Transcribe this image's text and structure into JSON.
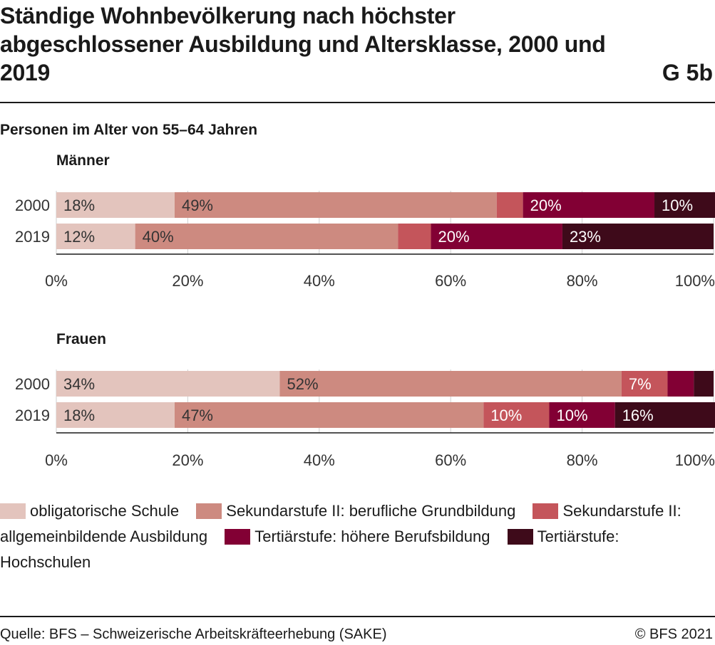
{
  "header": {
    "title": "Ständige Wohnbevölkerung nach höchster abgeschlossener Ausbildung und Altersklasse, 2000 und 2019",
    "code": "G 5b",
    "subtitle": "Personen im Alter von 55–64 Jahren"
  },
  "footer": {
    "source": "Quelle: BFS – Schweizerische Arbeitskräfteerhebung (SAKE)",
    "copyright": "© BFS 2021"
  },
  "chart_data": [
    {
      "type": "bar",
      "orientation": "horizontal",
      "stacked": true,
      "title": "Männer",
      "categories": [
        "2000",
        "2019"
      ],
      "xlim": [
        0,
        100
      ],
      "xticks": [
        "0%",
        "20%",
        "40%",
        "60%",
        "80%",
        "100%"
      ],
      "grid": true,
      "series": [
        {
          "name": "obligatorische Schule",
          "color": "#e3c4bd",
          "values": [
            18,
            12
          ],
          "labels": [
            "18%",
            "12%"
          ]
        },
        {
          "name": "Sekundarstufe II: berufliche Grundbildung",
          "color": "#cd8a80",
          "values": [
            49,
            40
          ],
          "labels": [
            "49%",
            "40%"
          ]
        },
        {
          "name": "Sekundarstufe II: allgemeinbildende Ausbildung",
          "color": "#c4555b",
          "values": [
            4,
            5
          ],
          "labels": [
            "",
            ""
          ]
        },
        {
          "name": "Tertiärstufe: höhere Berufsbildung",
          "color": "#820034",
          "values": [
            20,
            20
          ],
          "labels": [
            "20%",
            "20%"
          ]
        },
        {
          "name": "Tertiärstufe: Hochschulen",
          "color": "#3e0a1a",
          "values": [
            10,
            23
          ],
          "labels": [
            "10%",
            "23%"
          ]
        }
      ]
    },
    {
      "type": "bar",
      "orientation": "horizontal",
      "stacked": true,
      "title": "Frauen",
      "categories": [
        "2000",
        "2019"
      ],
      "xlim": [
        0,
        100
      ],
      "xticks": [
        "0%",
        "20%",
        "40%",
        "60%",
        "80%",
        "100%"
      ],
      "grid": true,
      "series": [
        {
          "name": "obligatorische Schule",
          "color": "#e3c4bd",
          "values": [
            34,
            18
          ],
          "labels": [
            "34%",
            "18%"
          ]
        },
        {
          "name": "Sekundarstufe II: berufliche Grundbildung",
          "color": "#cd8a80",
          "values": [
            52,
            47
          ],
          "labels": [
            "52%",
            "47%"
          ]
        },
        {
          "name": "Sekundarstufe II: allgemeinbildende Ausbildung",
          "color": "#c4555b",
          "values": [
            7,
            10
          ],
          "labels": [
            "7%",
            "10%"
          ]
        },
        {
          "name": "Tertiärstufe: höhere Berufsbildung",
          "color": "#820034",
          "values": [
            4,
            10
          ],
          "labels": [
            "",
            "10%"
          ]
        },
        {
          "name": "Tertiärstufe: Hochschulen",
          "color": "#3e0a1a",
          "values": [
            3,
            16
          ],
          "labels": [
            "",
            "16%"
          ]
        }
      ]
    }
  ],
  "legend": {
    "items": [
      {
        "label": "obligatorische Schule",
        "color": "#e3c4bd"
      },
      {
        "label": "Sekundarstufe II: berufliche Grundbildung",
        "color": "#cd8a80"
      },
      {
        "label": "Sekundarstufe II: allgemeinbildende Ausbildung",
        "color": "#c4555b"
      },
      {
        "label": "Tertiärstufe: höhere Berufsbildung",
        "color": "#820034"
      },
      {
        "label": "Tertiärstufe: Hochschulen",
        "color": "#3e0a1a"
      }
    ]
  }
}
